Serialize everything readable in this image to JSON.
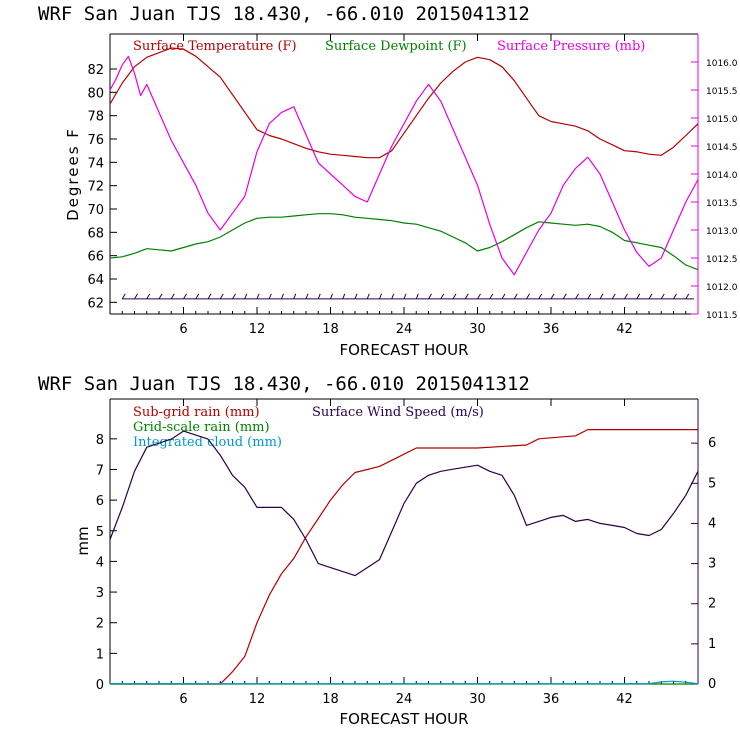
{
  "chart_data": [
    {
      "type": "line",
      "title": "WRF   San Juan TJS  18.430, -66.010  2015041312",
      "xlabel": "FORECAST HOUR",
      "ylabel": "Degrees F",
      "xlim": [
        0,
        48
      ],
      "ylim": [
        61,
        85
      ],
      "y2lim": [
        1011.5,
        1016.5
      ],
      "xticks": [
        6,
        12,
        18,
        24,
        30,
        36,
        42
      ],
      "yticks": [
        62,
        64,
        66,
        68,
        70,
        72,
        74,
        76,
        78,
        80,
        82
      ],
      "y2ticks": [
        "1011.5",
        "1012.0",
        "1012.5",
        "1013.0",
        "1013.5",
        "1014.0",
        "1014.5",
        "1015.0",
        "1015.5",
        "1016.0"
      ],
      "grid": false,
      "legend_position": "top",
      "wind_barbs_level": 62.3,
      "series": [
        {
          "name": "Surface Temperature (F)",
          "axis": "left",
          "color": "#b40000",
          "x": [
            0,
            1,
            2,
            3,
            4,
            5,
            6,
            7,
            8,
            9,
            10,
            11,
            12,
            13,
            14,
            15,
            16,
            17,
            18,
            19,
            20,
            21,
            22,
            23,
            24,
            25,
            26,
            27,
            28,
            29,
            30,
            31,
            32,
            33,
            34,
            35,
            36,
            37,
            38,
            39,
            40,
            41,
            42,
            43,
            44,
            45,
            46,
            47,
            48
          ],
          "y": [
            79,
            80.8,
            82.2,
            83,
            83.4,
            83.8,
            83.7,
            83.1,
            82.2,
            81.3,
            79.8,
            78.3,
            76.8,
            76.3,
            76,
            75.6,
            75.2,
            74.9,
            74.7,
            74.6,
            74.5,
            74.4,
            74.4,
            75,
            76.5,
            78,
            79.5,
            80.8,
            81.8,
            82.6,
            83,
            82.8,
            82.2,
            81,
            79.5,
            78,
            77.5,
            77.3,
            77.1,
            76.7,
            76,
            75.5,
            75,
            74.9,
            74.7,
            74.6,
            75.3,
            76.3,
            77.3
          ]
        },
        {
          "name": "Surface Dewpoint (F)",
          "axis": "left",
          "color": "#008000",
          "x": [
            0,
            1,
            2,
            3,
            4,
            5,
            6,
            7,
            8,
            9,
            10,
            11,
            12,
            13,
            14,
            15,
            16,
            17,
            18,
            19,
            20,
            21,
            22,
            23,
            24,
            25,
            26,
            27,
            28,
            29,
            30,
            31,
            32,
            33,
            34,
            35,
            36,
            37,
            38,
            39,
            40,
            41,
            42,
            43,
            44,
            45,
            46,
            47,
            48
          ],
          "y": [
            65.8,
            65.9,
            66.2,
            66.6,
            66.5,
            66.4,
            66.7,
            67,
            67.2,
            67.6,
            68.2,
            68.8,
            69.2,
            69.3,
            69.3,
            69.4,
            69.5,
            69.6,
            69.6,
            69.5,
            69.3,
            69.2,
            69.1,
            69,
            68.8,
            68.7,
            68.4,
            68.1,
            67.6,
            67.1,
            66.4,
            66.7,
            67.2,
            67.8,
            68.4,
            68.9,
            68.8,
            68.7,
            68.6,
            68.7,
            68.5,
            68,
            67.3,
            67.1,
            66.9,
            66.7,
            66,
            65.2,
            64.8
          ]
        },
        {
          "name": "Surface Pressure (mb)",
          "axis": "right",
          "color": "#e600e6",
          "x": [
            0,
            0.5,
            1,
            1.5,
            2,
            2.5,
            3,
            4,
            5,
            6,
            7,
            8,
            9,
            10,
            11,
            12,
            13,
            14,
            15,
            16,
            17,
            18,
            19,
            20,
            21,
            22,
            23,
            24,
            25,
            26,
            27,
            28,
            29,
            30,
            31,
            32,
            33,
            34,
            35,
            36,
            37,
            38,
            39,
            40,
            41,
            42,
            43,
            44,
            45,
            46,
            47,
            48
          ],
          "y": [
            1015.5,
            1015.7,
            1015.95,
            1016.1,
            1015.8,
            1015.4,
            1015.6,
            1015.1,
            1014.6,
            1014.2,
            1013.8,
            1013.3,
            1013.0,
            1013.3,
            1013.6,
            1014.4,
            1014.9,
            1015.1,
            1015.2,
            1014.7,
            1014.2,
            1014.0,
            1013.8,
            1013.6,
            1013.5,
            1014.0,
            1014.5,
            1014.9,
            1015.3,
            1015.6,
            1015.3,
            1014.8,
            1014.3,
            1013.8,
            1013.1,
            1012.5,
            1012.2,
            1012.6,
            1013.0,
            1013.3,
            1013.8,
            1014.1,
            1014.3,
            1014.0,
            1013.5,
            1013.0,
            1012.6,
            1012.35,
            1012.5,
            1013.0,
            1013.5,
            1013.9
          ]
        }
      ]
    },
    {
      "type": "line",
      "title": "WRF   San Juan TJS  18.430, -66.010  2015041312",
      "xlabel": "FORECAST HOUR",
      "ylabel": "mm",
      "xlim": [
        0,
        48
      ],
      "ylim": [
        0,
        9.3
      ],
      "y2lim": [
        0,
        7.1
      ],
      "xticks": [
        6,
        12,
        18,
        24,
        30,
        36,
        42
      ],
      "yticks": [
        0,
        1,
        2,
        3,
        4,
        5,
        6,
        7,
        8
      ],
      "y2ticks": [
        0,
        1,
        2,
        3,
        4,
        5,
        6
      ],
      "grid": false,
      "legend_position": "top-left",
      "series": [
        {
          "name": "Sub-grid rain (mm)",
          "axis": "left",
          "color": "#b40000",
          "x": [
            0,
            9,
            10,
            11,
            12,
            13,
            14,
            15,
            16,
            17,
            18,
            19,
            20,
            21,
            22,
            23,
            24,
            25,
            25.5,
            30,
            34,
            35,
            38,
            39,
            40,
            48
          ],
          "y": [
            0,
            0,
            0.4,
            0.9,
            2.0,
            2.9,
            3.6,
            4.1,
            4.8,
            5.4,
            6.0,
            6.5,
            6.9,
            7.0,
            7.1,
            7.3,
            7.5,
            7.7,
            7.7,
            7.7,
            7.8,
            8.0,
            8.1,
            8.3,
            8.3,
            8.3
          ]
        },
        {
          "name": "Grid-scale rain (mm)",
          "axis": "left",
          "color": "#008000",
          "x": [
            0,
            48
          ],
          "y": [
            0,
            0
          ]
        },
        {
          "name": "Integrated cloud (mm)",
          "axis": "left",
          "color": "#0096d2",
          "x": [
            0,
            44,
            45,
            46,
            47,
            48
          ],
          "y": [
            0.01,
            0.01,
            0.07,
            0.09,
            0.06,
            0.01
          ]
        },
        {
          "name": "Surface Wind Speed (m/s)",
          "axis": "right",
          "color": "#2a004a",
          "x": [
            0,
            1,
            2,
            3,
            4,
            5,
            6,
            7,
            8,
            9,
            10,
            11,
            12,
            13,
            14,
            15,
            16,
            17,
            18,
            19,
            20,
            21,
            22,
            23,
            24,
            25,
            26,
            27,
            28,
            29,
            30,
            31,
            32,
            33,
            34,
            35,
            36,
            37,
            38,
            39,
            40,
            41,
            42,
            43,
            44,
            45,
            46,
            47,
            48
          ],
          "y": [
            3.6,
            4.4,
            5.3,
            5.9,
            6.0,
            6.1,
            6.3,
            6.2,
            6.1,
            5.7,
            5.2,
            4.9,
            4.4,
            4.4,
            4.4,
            4.1,
            3.6,
            3.0,
            2.9,
            2.8,
            2.7,
            2.9,
            3.1,
            3.8,
            4.5,
            5.0,
            5.2,
            5.3,
            5.35,
            5.4,
            5.45,
            5.3,
            5.2,
            4.7,
            3.95,
            4.05,
            4.15,
            4.2,
            4.05,
            4.1,
            4.0,
            3.95,
            3.9,
            3.75,
            3.7,
            3.85,
            4.25,
            4.7,
            5.3
          ]
        }
      ]
    }
  ]
}
